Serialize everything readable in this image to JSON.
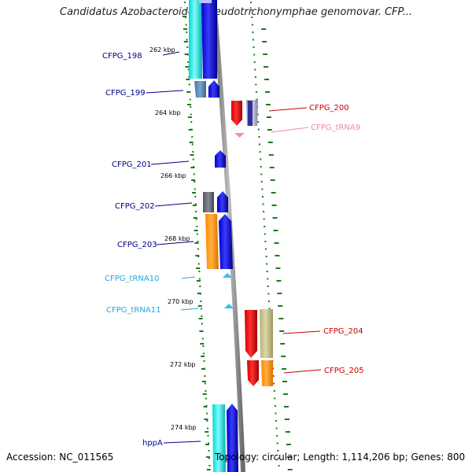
{
  "title": "Candidatus Azobacteroides pseudotrichonymphae genomovar. CFP...",
  "accession_label": "Accession: NC_011565",
  "topology_label": "Topology: circular; Length: 1,114,206 bp; Genes: 800",
  "colors": {
    "left_label": "#00008b",
    "right_label": "#cc0000",
    "trna9_label": "#ee88aa",
    "trna_cyan_label": "#22aadd",
    "tick": "#1a7a1a",
    "backbone": "#8c8c8c"
  },
  "kbp_ticks": [
    "262 kbp",
    "264 kbp",
    "266 kbp",
    "268 kbp",
    "270 kbp",
    "272 kbp",
    "274 kbp"
  ],
  "features": [
    {
      "label": "CFPG_198",
      "strand": "left",
      "color": "#00008b"
    },
    {
      "label": "CFPG_199",
      "strand": "left",
      "color": "#00008b"
    },
    {
      "label": "CFPG_200",
      "strand": "right",
      "color": "#cc0000"
    },
    {
      "label": "CFPG_tRNA9",
      "strand": "right",
      "color": "#ee88aa"
    },
    {
      "label": "CFPG_201",
      "strand": "left",
      "color": "#00008b"
    },
    {
      "label": "CFPG_202",
      "strand": "left",
      "color": "#00008b"
    },
    {
      "label": "CFPG_203",
      "strand": "left",
      "color": "#00008b"
    },
    {
      "label": "CFPG_tRNA10",
      "strand": "left",
      "color": "#22aadd"
    },
    {
      "label": "CFPG_tRNA11",
      "strand": "left",
      "color": "#22aadd"
    },
    {
      "label": "CFPG_204",
      "strand": "right",
      "color": "#cc0000"
    },
    {
      "label": "CFPG_205",
      "strand": "right",
      "color": "#cc0000"
    },
    {
      "label": "hppA",
      "strand": "left",
      "color": "#00008b"
    }
  ]
}
